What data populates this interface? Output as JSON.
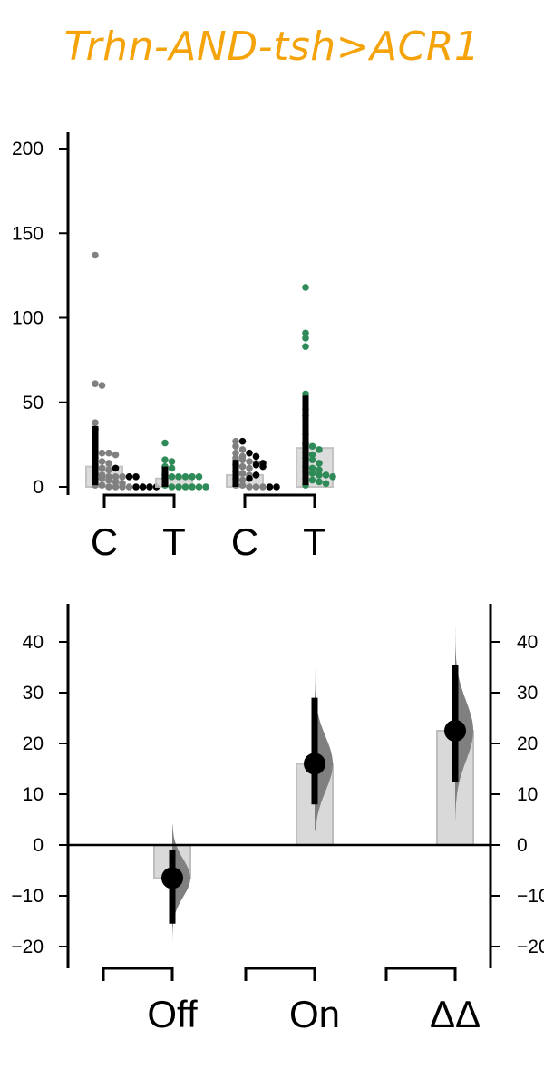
{
  "title": "Trhn-AND-tsh>ACR1",
  "colors": {
    "title": "#f5a30a",
    "control": "#808080",
    "control_dark": "#000000",
    "test": "#2e8b57",
    "bar": "#d9d9d9",
    "bar_edge": "#bdbdbd",
    "dist": "#808080"
  },
  "chart_data": [
    {
      "type": "scatter",
      "subtype": "swarm",
      "ylim": [
        0,
        200
      ],
      "yticks": [
        0,
        50,
        100,
        150,
        200
      ],
      "groups": [
        {
          "label": "C",
          "color": "control",
          "mean": 12,
          "error": [
            1,
            36
          ],
          "points": [
            137,
            61,
            60,
            38,
            21,
            20,
            20,
            19,
            17,
            15,
            14,
            13,
            11,
            10,
            8,
            7,
            6,
            6,
            6,
            5,
            5,
            4,
            3,
            2,
            1,
            1,
            0,
            0,
            0,
            0
          ],
          "dark_points": [
            34,
            11,
            6,
            6,
            0,
            0,
            0,
            0
          ]
        },
        {
          "label": "T",
          "color": "test",
          "mean": 5,
          "error": [
            0,
            12
          ],
          "points": [
            26,
            16,
            15,
            12,
            11,
            7,
            6,
            6,
            6,
            6,
            6,
            5,
            1,
            0,
            0,
            0,
            0,
            0,
            0
          ]
        },
        {
          "label": "C",
          "color": "control",
          "mean": 7,
          "error": [
            0,
            16
          ],
          "points": [
            27,
            24,
            22,
            20,
            18,
            17,
            16,
            15,
            14,
            13,
            12,
            11,
            9,
            8,
            7,
            5,
            4,
            1,
            1,
            0,
            0,
            0
          ],
          "dark_points": [
            27,
            20,
            18,
            14,
            13,
            12,
            7,
            5,
            0,
            0
          ]
        },
        {
          "label": "T",
          "color": "test",
          "mean": 23,
          "error": [
            1,
            54
          ],
          "points": [
            118,
            91,
            88,
            83,
            55,
            46,
            42,
            31,
            26,
            25,
            24,
            22,
            20,
            19,
            17,
            16,
            14,
            12,
            11,
            10,
            9,
            8,
            7,
            7,
            6,
            5,
            4,
            3,
            2,
            1
          ]
        }
      ],
      "bracket_pairs": [
        [
          0,
          1
        ],
        [
          2,
          3
        ]
      ]
    },
    {
      "type": "scatter",
      "subtype": "estimation",
      "ylim": [
        -20,
        40
      ],
      "yticks": [
        -20,
        -10,
        0,
        10,
        20,
        30,
        40
      ],
      "categories": [
        "Off",
        "On",
        "ΔΔ"
      ],
      "estimates": [
        {
          "label": "Off",
          "mean": -6.5,
          "ci": [
            -15.5,
            -1
          ],
          "dist_range": [
            -21,
            4
          ]
        },
        {
          "label": "On",
          "mean": 16,
          "ci": [
            8,
            29
          ],
          "dist_range": [
            3,
            36
          ]
        },
        {
          "label": "ΔΔ",
          "mean": 22.5,
          "ci": [
            12.5,
            35.5
          ],
          "dist_range": [
            5,
            44
          ]
        }
      ]
    }
  ]
}
